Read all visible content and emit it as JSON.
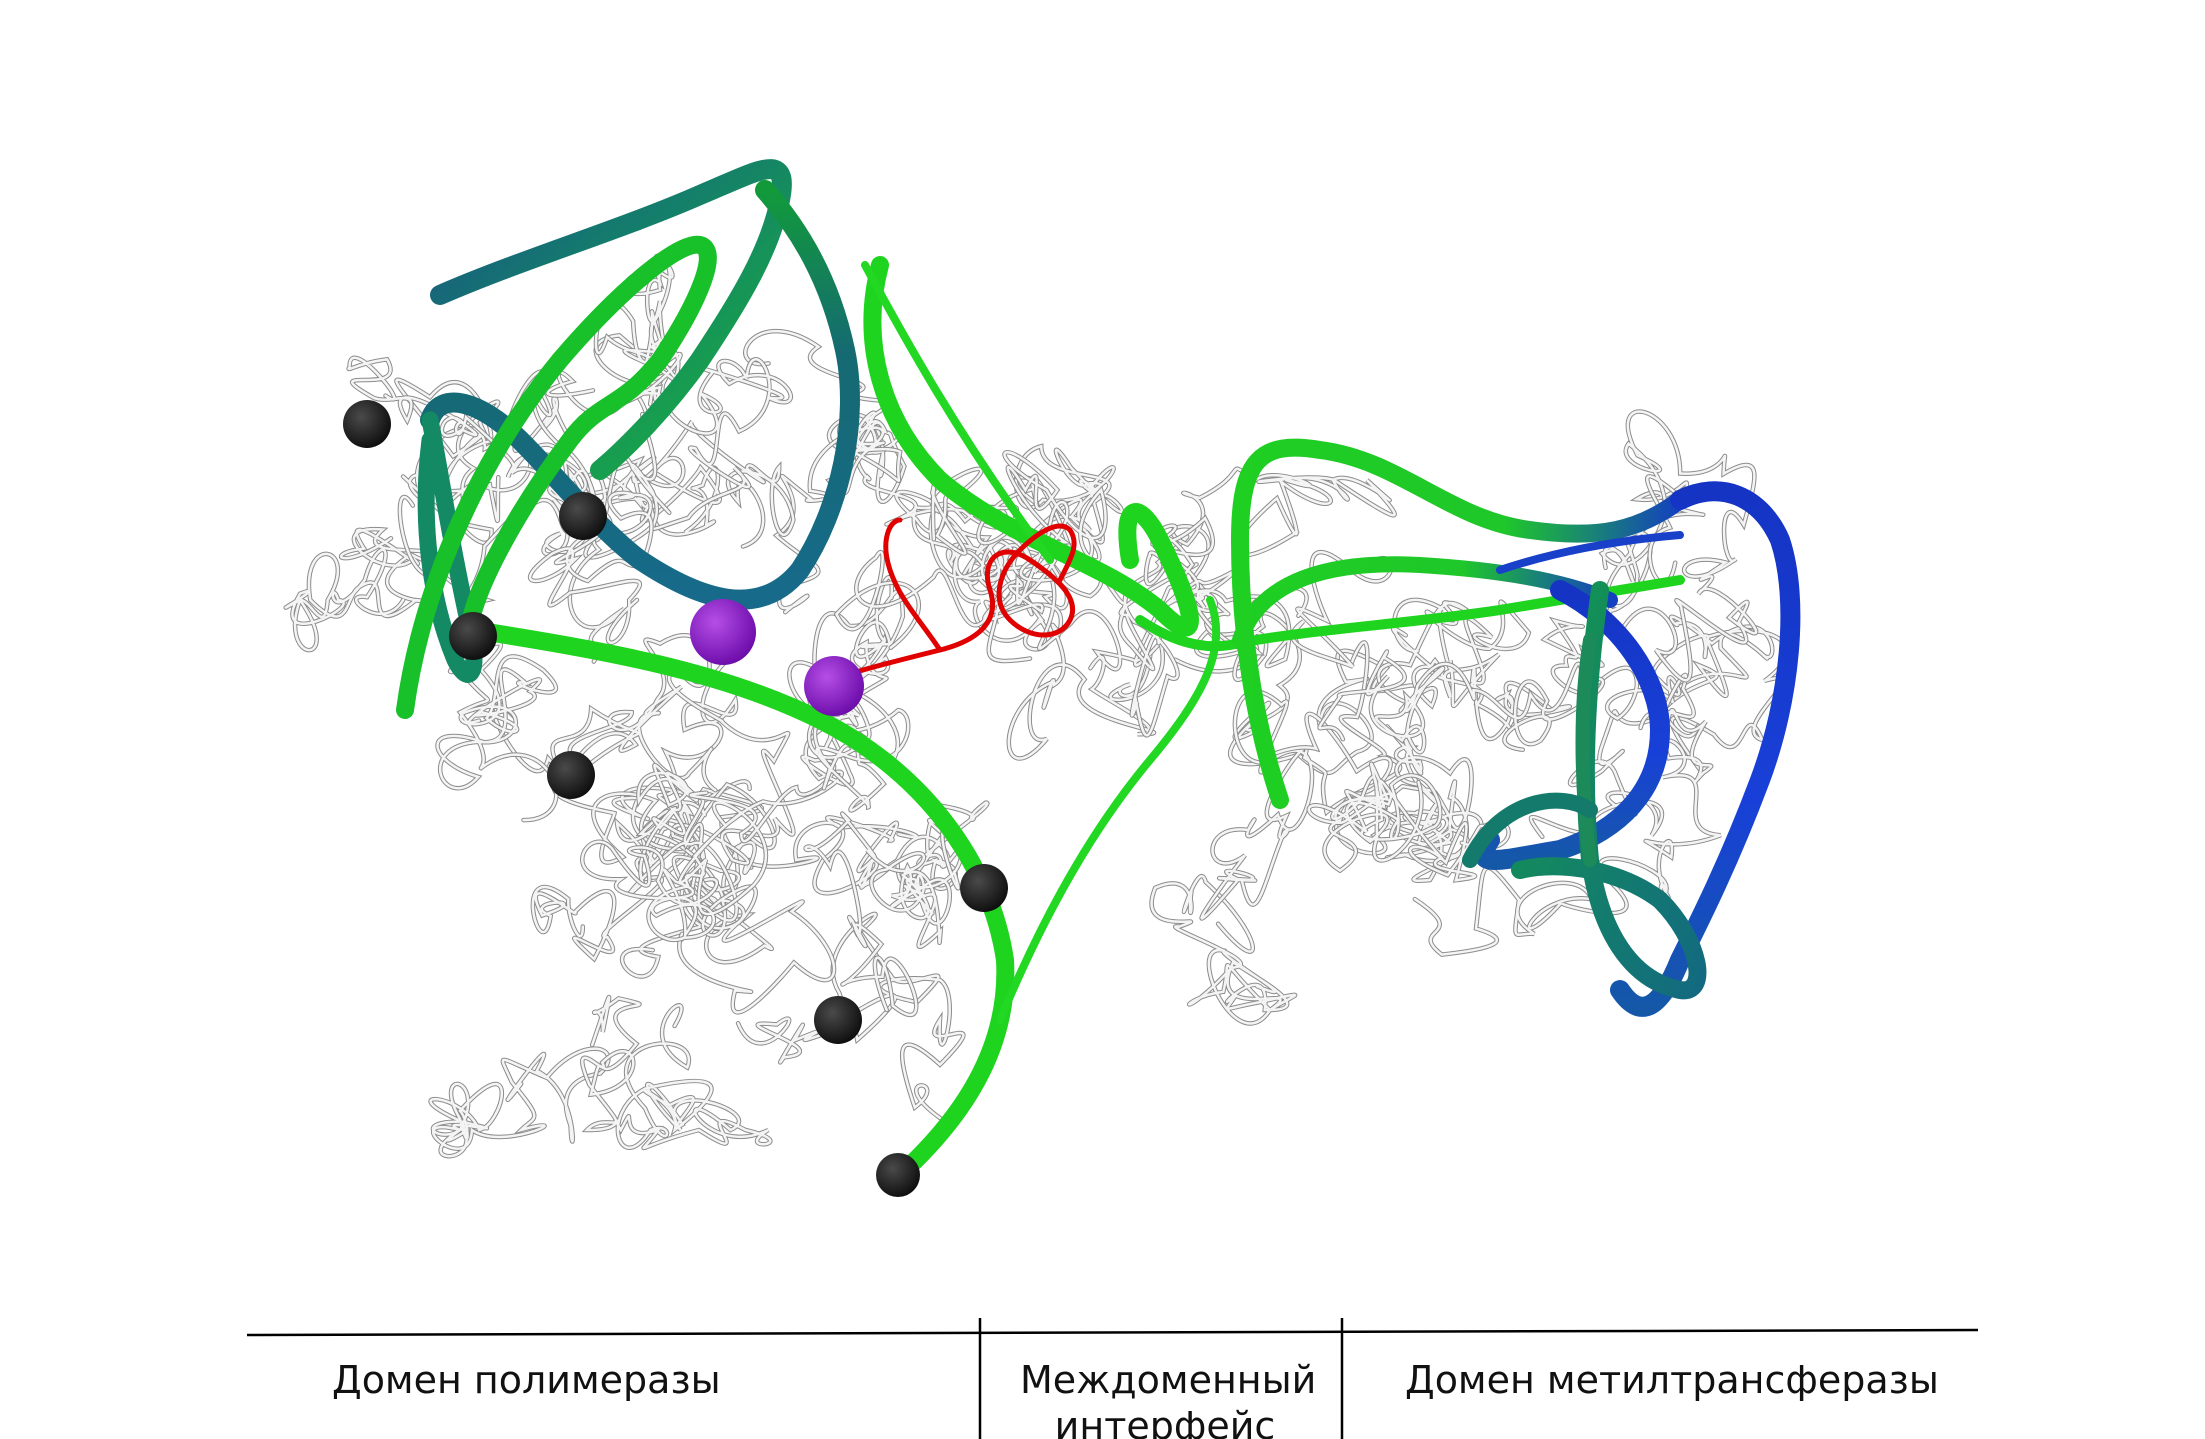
{
  "domains": {
    "polymerase": "Домен полимеразы",
    "interface_line1": "Междоменный",
    "interface_line2": "интерфейс",
    "methyltransferase": "Домен метилтрансферазы"
  },
  "colors": {
    "coil": "#cfcfcf",
    "coil_outline": "#8c8c8c",
    "tube_green": "#1fd21f",
    "tube_teal": "#136f6f",
    "tube_blue": "#1836c8",
    "loop_red": "#e00000",
    "sphere_black": "#161616",
    "sphere_purple": "#8a16c4",
    "axis": "#000000"
  }
}
